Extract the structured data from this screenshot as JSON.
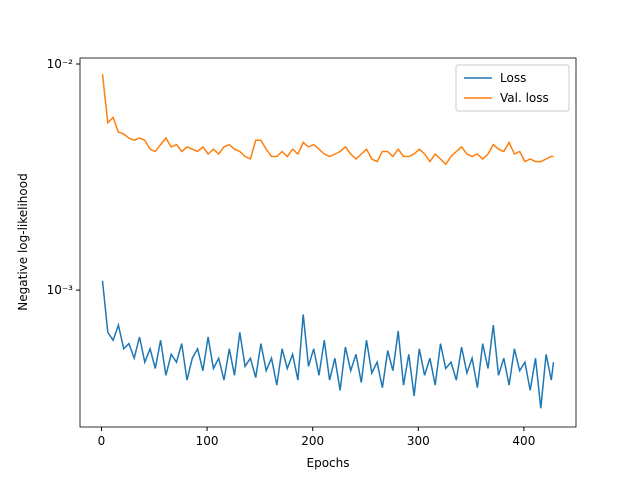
{
  "chart_data": {
    "type": "line",
    "xlabel": "Epochs",
    "ylabel": "Negative log-likelihood",
    "x": [
      1,
      6,
      11,
      16,
      21,
      26,
      31,
      36,
      41,
      46,
      51,
      56,
      61,
      66,
      71,
      76,
      81,
      86,
      91,
      96,
      101,
      106,
      111,
      116,
      121,
      126,
      131,
      136,
      141,
      146,
      151,
      156,
      161,
      166,
      171,
      176,
      181,
      186,
      191,
      196,
      201,
      206,
      211,
      216,
      221,
      226,
      231,
      236,
      241,
      246,
      251,
      256,
      261,
      266,
      271,
      276,
      281,
      286,
      291,
      296,
      301,
      306,
      311,
      316,
      321,
      326,
      331,
      336,
      341,
      346,
      351,
      356,
      361,
      366,
      371,
      376,
      381,
      386,
      391,
      396,
      401,
      406,
      411,
      416,
      421,
      426,
      428
    ],
    "series": [
      {
        "name": "Loss",
        "color": "#1f77b4",
        "values": [
          0.0011,
          0.00065,
          0.0006,
          0.0007,
          0.00055,
          0.00058,
          0.0005,
          0.00062,
          0.00048,
          0.00055,
          0.00045,
          0.0006,
          0.00042,
          0.00052,
          0.00048,
          0.00058,
          0.0004,
          0.0005,
          0.00055,
          0.00044,
          0.00062,
          0.00045,
          0.0005,
          0.0004,
          0.00055,
          0.00042,
          0.00065,
          0.00046,
          0.0005,
          0.00041,
          0.00058,
          0.00044,
          0.0005,
          0.00038,
          0.00055,
          0.00045,
          0.00052,
          0.0004,
          0.00078,
          0.00046,
          0.00055,
          0.00042,
          0.0006,
          0.0004,
          0.0005,
          0.00036,
          0.00056,
          0.00044,
          0.00052,
          0.00039,
          0.0006,
          0.00043,
          0.00048,
          0.00037,
          0.00054,
          0.00044,
          0.00066,
          0.00038,
          0.00052,
          0.00034,
          0.00055,
          0.00042,
          0.0005,
          0.00038,
          0.00058,
          0.00045,
          0.00048,
          0.0004,
          0.00056,
          0.00043,
          0.0005,
          0.00037,
          0.00058,
          0.00045,
          0.0007,
          0.00042,
          0.0005,
          0.00038,
          0.00055,
          0.00044,
          0.00048,
          0.00036,
          0.0005,
          0.0003,
          0.00052,
          0.0004,
          0.00048
        ]
      },
      {
        "name": "Val. loss",
        "color": "#ff7f0e",
        "values": [
          0.009,
          0.0055,
          0.0058,
          0.005,
          0.0049,
          0.0047,
          0.0046,
          0.0047,
          0.0046,
          0.0042,
          0.0041,
          0.0044,
          0.0047,
          0.0043,
          0.0044,
          0.0041,
          0.0043,
          0.0042,
          0.0041,
          0.0043,
          0.004,
          0.0042,
          0.004,
          0.0043,
          0.0044,
          0.0042,
          0.0041,
          0.0039,
          0.0038,
          0.0046,
          0.0046,
          0.0042,
          0.0039,
          0.0039,
          0.0041,
          0.0039,
          0.0042,
          0.004,
          0.0045,
          0.0043,
          0.0044,
          0.0042,
          0.004,
          0.0039,
          0.004,
          0.0041,
          0.0043,
          0.004,
          0.0038,
          0.004,
          0.0042,
          0.0038,
          0.0037,
          0.0041,
          0.0041,
          0.0039,
          0.0042,
          0.0039,
          0.0039,
          0.004,
          0.0042,
          0.004,
          0.0037,
          0.004,
          0.0038,
          0.0036,
          0.0039,
          0.0041,
          0.0043,
          0.004,
          0.0039,
          0.004,
          0.0038,
          0.004,
          0.0044,
          0.0042,
          0.0041,
          0.0045,
          0.004,
          0.0041,
          0.0037,
          0.0038,
          0.0037,
          0.0037,
          0.0038,
          0.0039,
          0.0039
        ]
      }
    ],
    "xlim": [
      -20.35,
      449.35
    ],
    "xticks": [
      0,
      100,
      200,
      300,
      400
    ],
    "ylim": [
      0.000248,
      0.01063
    ],
    "yscale": "log",
    "yticks": [
      {
        "value": 0.001,
        "label": "10⁻³"
      },
      {
        "value": 0.01,
        "label": "10⁻²"
      }
    ],
    "legend": "upper right"
  }
}
